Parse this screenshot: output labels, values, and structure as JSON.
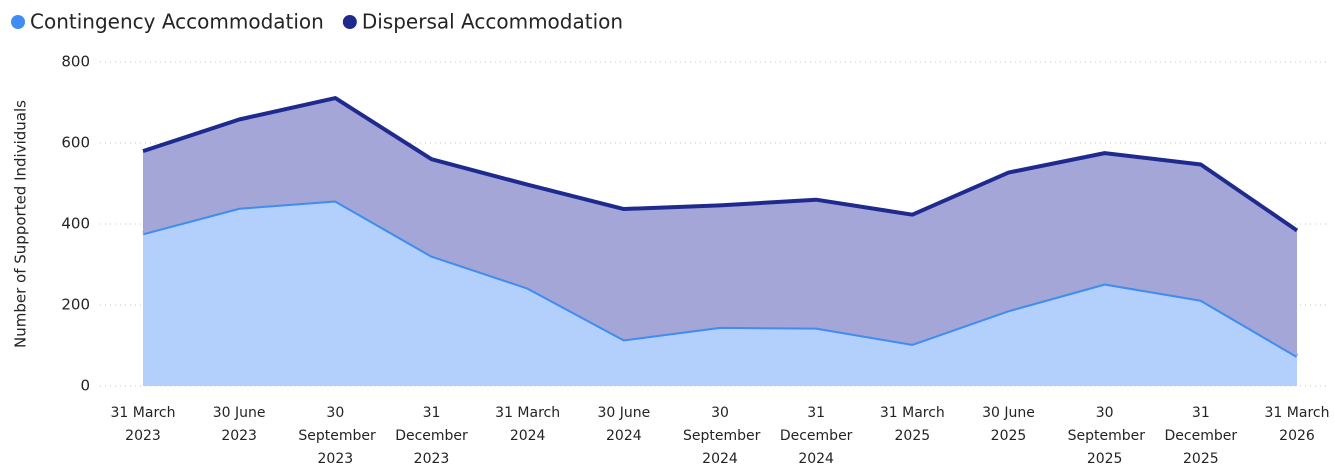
{
  "chart_data": {
    "type": "stacked_area",
    "y_label": "Number of Supported Individuals",
    "categories": [
      "31 March 2023",
      "30 June 2023",
      "30 September 2023",
      "31 December 2023",
      "31 March 2024",
      "30 June 2024",
      "30 September 2024",
      "31 December 2024",
      "31 March 2025",
      "30 June 2025",
      "30 September 2025",
      "31 December 2025",
      "31 March 2026"
    ],
    "series": [
      {
        "name": "Contingency Accommodation",
        "color": "#3f8cf3",
        "fill": "#b3cffb",
        "values": [
          377,
          440,
          458,
          322,
          243,
          115,
          146,
          144,
          104,
          187,
          253,
          213,
          74
        ]
      },
      {
        "name": "Dispersal Accommodation",
        "color": "#1f2a8f",
        "fill": "#a3a6d6",
        "values": [
          203,
          218,
          253,
          238,
          254,
          322,
          300,
          316,
          319,
          340,
          322,
          334,
          310
        ]
      }
    ],
    "ylim": [
      0,
      800
    ],
    "yticks": [
      0,
      200,
      400,
      600,
      800
    ],
    "grid": true,
    "legend": "top-left"
  }
}
